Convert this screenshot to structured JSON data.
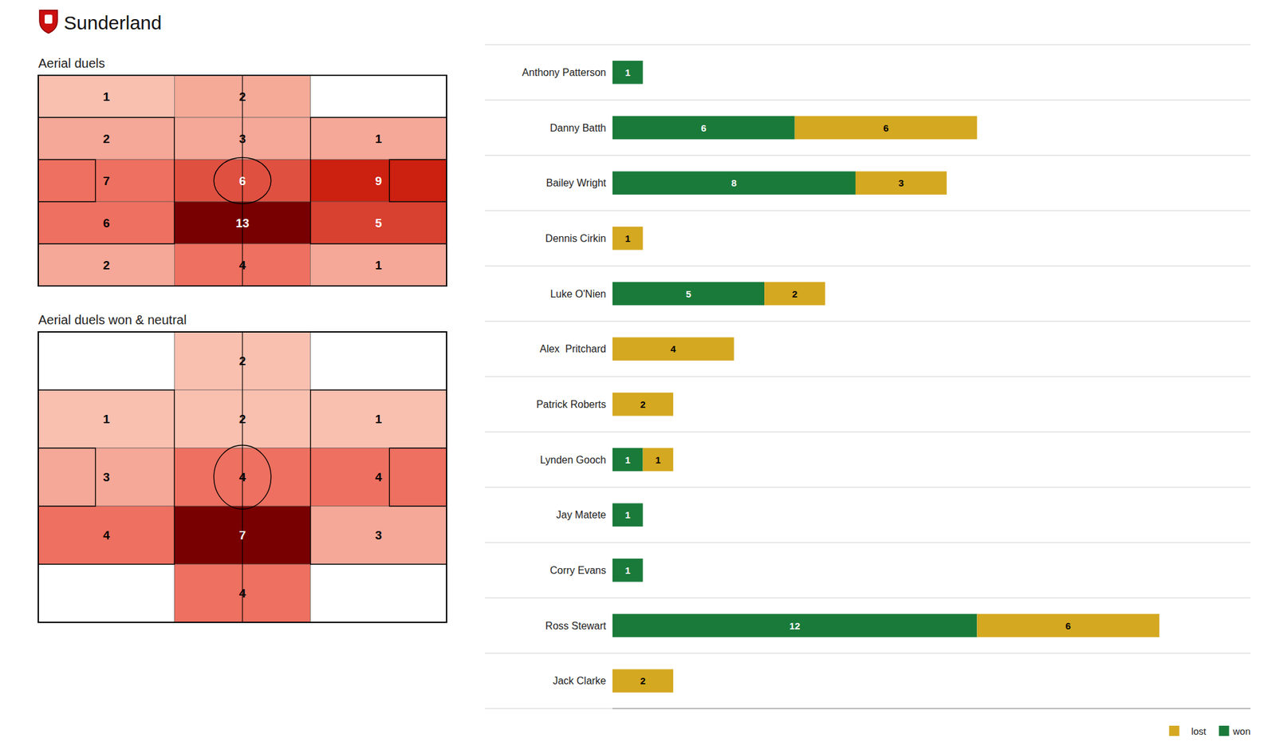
{
  "chart_data": [
    {
      "type": "heatmap",
      "title": "Sunderland",
      "subtitle": "Aerial duels",
      "cells": [
        [
          1,
          2,
          0
        ],
        [
          2,
          3,
          1
        ],
        [
          7,
          6,
          9
        ],
        [
          6,
          13,
          5
        ],
        [
          2,
          4,
          1
        ]
      ],
      "colors": [
        [
          "#f9c0b0",
          "#f5aA98",
          "#ffffff"
        ],
        [
          "#f5a898",
          "#f5a898",
          "#f5a898"
        ],
        [
          "#ee7060",
          "#e05040",
          "#cc2010"
        ],
        [
          "#ee7060",
          "#780000",
          "#d84030"
        ],
        [
          "#f5a898",
          "#ee7060",
          "#f5a898"
        ]
      ],
      "data_labels": true,
      "tick_labels": false
    },
    {
      "type": "heatmap",
      "subtitle": "Aerial duels won & neutral",
      "cells": [
        [
          0,
          2,
          0
        ],
        [
          1,
          2,
          1
        ],
        [
          3,
          4,
          4
        ],
        [
          4,
          7,
          3
        ],
        [
          0,
          4,
          0
        ]
      ],
      "colors": [
        [
          "#ffffff",
          "#f9c0b0",
          "#ffffff"
        ],
        [
          "#f9c0b0",
          "#f9c0b0",
          "#f9c0b0"
        ],
        [
          "#f5a898",
          "#ee7060",
          "#ee7060"
        ],
        [
          "#ee7060",
          "#780000",
          "#f5a898"
        ],
        [
          "#ffffff",
          "#ee7060",
          "#ffffff"
        ]
      ],
      "data_labels": true,
      "tick_labels": false
    },
    {
      "type": "bar",
      "orientation": "horizontal",
      "stacked": true,
      "categories": [
        "Anthony Patterson",
        "Danny Batth",
        "Bailey Wright",
        "Dennis Cirkin",
        "Luke O'Nien",
        "Alex  Pritchard",
        "Patrick Roberts",
        "Lynden Gooch",
        "Jay Matete",
        "Corry Evans",
        "Ross Stewart",
        "Jack Clarke"
      ],
      "series": [
        {
          "name": "won",
          "color": "#1a7a3a",
          "values": [
            1,
            6,
            8,
            0,
            5,
            0,
            0,
            1,
            1,
            1,
            12,
            0
          ]
        },
        {
          "name": "lost",
          "color": "#d4a820",
          "values": [
            0,
            6,
            3,
            1,
            2,
            4,
            2,
            1,
            0,
            0,
            6,
            2
          ]
        }
      ],
      "xlim": [
        0,
        21
      ],
      "legend": "lower right",
      "data_labels": true,
      "tick_labels": "y"
    }
  ]
}
